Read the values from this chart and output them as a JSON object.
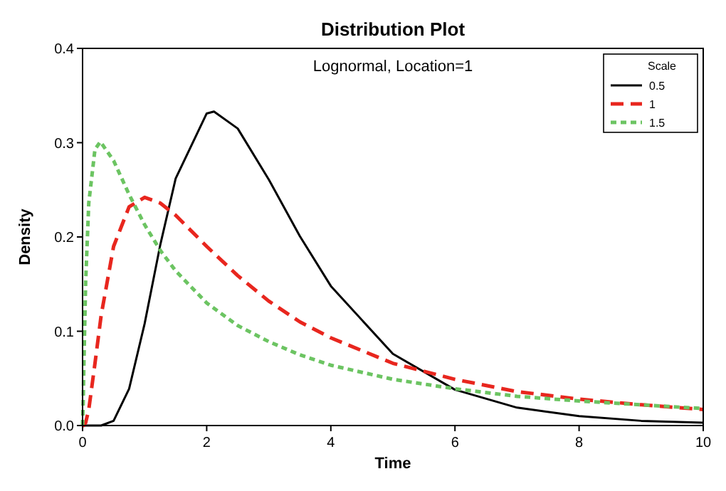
{
  "chart_data": {
    "type": "line",
    "title": "Distribution Plot",
    "subtitle": "Lognormal, Location=1",
    "xlabel": "Time",
    "ylabel": "Density",
    "legend_title": "Scale",
    "legend": "top right",
    "grid": false,
    "xlim": [
      0,
      10
    ],
    "ylim": [
      0,
      0.4
    ],
    "xticks": [
      0,
      2,
      4,
      6,
      8,
      10
    ],
    "yticks": [
      {
        "value": 0,
        "label": "0.0"
      },
      {
        "value": 0.1,
        "label": "0.1"
      },
      {
        "value": 0.2,
        "label": "0.2"
      },
      {
        "value": 0.3,
        "label": "0.3"
      },
      {
        "value": 0.4,
        "label": "0.4"
      }
    ],
    "series": [
      {
        "name": "0.5",
        "color": "#000000",
        "line_style": "solid",
        "x": [
          0,
          0.3,
          0.5,
          0.75,
          1,
          1.25,
          1.5,
          2,
          2.117,
          2.5,
          3,
          3.5,
          4,
          5,
          6,
          7,
          8,
          9,
          10
        ],
        "values": [
          0,
          0,
          0.005,
          0.039,
          0.108,
          0.191,
          0.262,
          0.331,
          0.333,
          0.315,
          0.261,
          0.201,
          0.148,
          0.076,
          0.038,
          0.019,
          0.01,
          0.005,
          0.003
        ]
      },
      {
        "name": "1",
        "color": "#e8261e",
        "line_style": "dashed",
        "x": [
          0,
          0.02,
          0.05,
          0.1,
          0.2,
          0.3,
          0.5,
          0.75,
          1,
          1.25,
          1.5,
          2,
          2.5,
          3,
          3.5,
          4,
          5,
          6,
          7,
          8,
          9,
          10
        ],
        "values": [
          0,
          0,
          0.003,
          0.017,
          0.066,
          0.117,
          0.19,
          0.232,
          0.242,
          0.236,
          0.223,
          0.19,
          0.159,
          0.132,
          0.11,
          0.093,
          0.066,
          0.049,
          0.036,
          0.028,
          0.022,
          0.017
        ]
      },
      {
        "name": "1.5",
        "color": "#6cc462",
        "line_style": "dotted",
        "x": [
          0,
          0.01,
          0.02,
          0.05,
          0.1,
          0.2,
          0.287,
          0.5,
          0.75,
          1,
          1.25,
          1.5,
          2,
          2.5,
          3,
          3.5,
          4,
          5,
          6,
          7,
          8,
          9,
          10
        ],
        "values": [
          0,
          0.025,
          0.062,
          0.153,
          0.236,
          0.293,
          0.301,
          0.281,
          0.245,
          0.213,
          0.186,
          0.164,
          0.13,
          0.106,
          0.089,
          0.075,
          0.064,
          0.049,
          0.039,
          0.031,
          0.026,
          0.022,
          0.018
        ]
      }
    ]
  }
}
